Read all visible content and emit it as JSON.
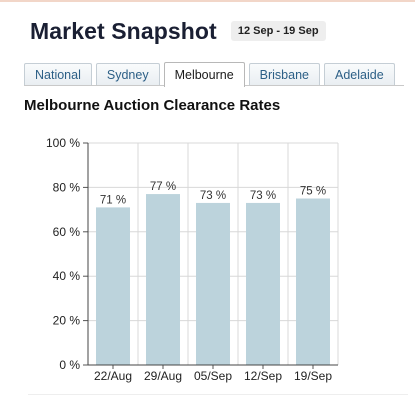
{
  "header": {
    "title": "Market Snapshot",
    "date_range": "12 Sep - 19 Sep"
  },
  "tabs": [
    {
      "label": "National",
      "active": false
    },
    {
      "label": "Sydney",
      "active": false
    },
    {
      "label": "Melbourne",
      "active": true
    },
    {
      "label": "Brisbane",
      "active": false
    },
    {
      "label": "Adelaide",
      "active": false
    }
  ],
  "colors": {
    "bar": "#bcd3dc",
    "tab_text": "#2c5f86",
    "grid": "#d8d8d8"
  },
  "chart_data": {
    "type": "bar",
    "title": "Melbourne Auction Clearance Rates",
    "categories": [
      "22/Aug",
      "29/Aug",
      "05/Sep",
      "12/Sep",
      "19/Sep"
    ],
    "values": [
      71,
      77,
      73,
      73,
      75
    ],
    "data_labels": [
      "71 %",
      "77 %",
      "73 %",
      "73 %",
      "75 %"
    ],
    "yticks": [
      0,
      20,
      40,
      60,
      80,
      100
    ],
    "ytick_labels": [
      "0 %",
      "20 %",
      "40 %",
      "60 %",
      "80 %",
      "100 %"
    ],
    "ylim": [
      0,
      100
    ],
    "xlabel": "",
    "ylabel": "",
    "grid": true,
    "legend": "none"
  }
}
